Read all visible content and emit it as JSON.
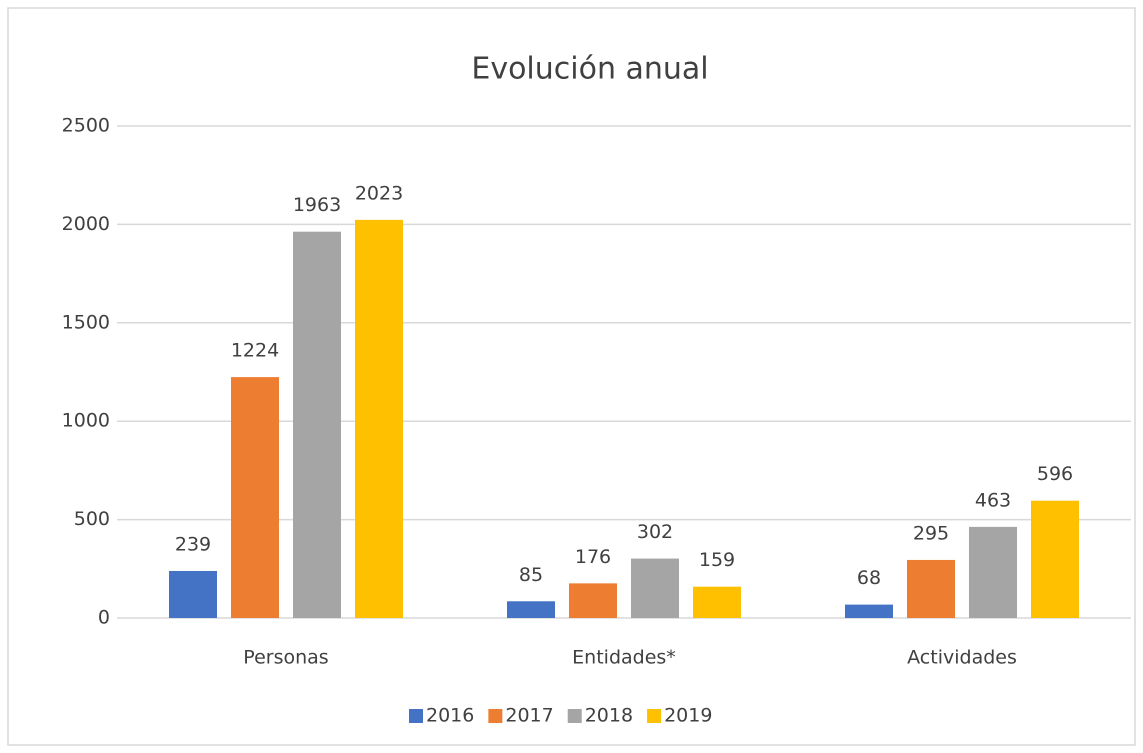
{
  "chart_data": {
    "type": "bar",
    "title": "Evolución anual",
    "categories": [
      "Personas",
      "Entidades*",
      "Actividades"
    ],
    "series": [
      {
        "name": "2016",
        "color": "#4472c4",
        "values": [
          239,
          85,
          68
        ]
      },
      {
        "name": "2017",
        "color": "#ed7d31",
        "values": [
          1224,
          176,
          295
        ]
      },
      {
        "name": "2018",
        "color": "#a5a5a5",
        "values": [
          1963,
          302,
          463
        ]
      },
      {
        "name": "2019",
        "color": "#ffc000",
        "values": [
          2023,
          159,
          596
        ]
      }
    ],
    "ylim": [
      0,
      2500
    ],
    "yticks": [
      0,
      500,
      1000,
      1500,
      2000,
      2500
    ],
    "grid": true,
    "legend": "bottom"
  }
}
